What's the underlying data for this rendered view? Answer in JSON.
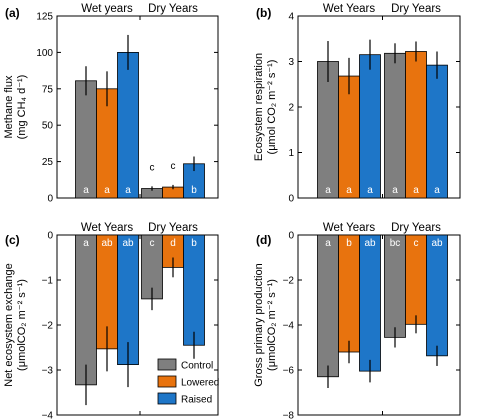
{
  "colors": {
    "Control": "#7f7f7f",
    "Lowered": "#e8730e",
    "Raised": "#1e76c8"
  },
  "legend": [
    "Control",
    "Lowered",
    "Raised"
  ],
  "chart_data": [
    {
      "panel": "(a)",
      "type": "bar",
      "ylabel": [
        "Methane flux",
        "(mg CH₄ d⁻¹)"
      ],
      "ylim": [
        0,
        125
      ],
      "yticks": [
        0,
        25,
        50,
        75,
        100,
        125
      ],
      "categories": [
        "Wet years",
        "Dry Years"
      ],
      "series": [
        {
          "name": "Control",
          "values": [
            80.5,
            6.5
          ],
          "err": [
            10,
            1.5
          ],
          "labels": [
            "a",
            "c"
          ]
        },
        {
          "name": "Lowered",
          "values": [
            75,
            7.5
          ],
          "err": [
            12,
            1.5
          ],
          "labels": [
            "a",
            "c"
          ]
        },
        {
          "name": "Raised",
          "values": [
            100,
            23.5
          ],
          "err": [
            12,
            5
          ],
          "labels": [
            "a",
            "b"
          ]
        }
      ]
    },
    {
      "panel": "(b)",
      "type": "bar",
      "ylabel": [
        "Ecosystem respiration",
        "(μmol CO₂ m⁻² s⁻¹)"
      ],
      "ylim": [
        0,
        4
      ],
      "yticks": [
        0,
        1,
        2,
        3,
        4
      ],
      "categories": [
        "Wet Years",
        "Dry Years"
      ],
      "series": [
        {
          "name": "Control",
          "values": [
            3.0,
            3.18
          ],
          "err": [
            0.45,
            0.22
          ],
          "labels": [
            "a",
            "a"
          ]
        },
        {
          "name": "Lowered",
          "values": [
            2.68,
            3.22
          ],
          "err": [
            0.4,
            0.22
          ],
          "labels": [
            "a",
            "a"
          ]
        },
        {
          "name": "Raised",
          "values": [
            3.15,
            2.92
          ],
          "err": [
            0.33,
            0.3
          ],
          "labels": [
            "a",
            "a"
          ]
        }
      ]
    },
    {
      "panel": "(c)",
      "type": "bar",
      "ylabel": [
        "Net ecosystem exchange",
        "(μmolCO₂ m⁻² s⁻¹)"
      ],
      "ylim": [
        -4,
        0
      ],
      "yticks": [
        -4,
        -3,
        -2,
        -1,
        0
      ],
      "categories": [
        "Wet Years",
        "Dry Years"
      ],
      "series": [
        {
          "name": "Control",
          "values": [
            -3.33,
            -1.42
          ],
          "err": [
            0.45,
            0.25
          ],
          "labels": [
            "a",
            "c"
          ]
        },
        {
          "name": "Lowered",
          "values": [
            -2.53,
            -0.72
          ],
          "err": [
            0.5,
            0.22
          ],
          "labels": [
            "ab",
            "d"
          ]
        },
        {
          "name": "Raised",
          "values": [
            -2.88,
            -2.45
          ],
          "err": [
            0.5,
            0.3
          ],
          "labels": [
            "ab",
            "b"
          ]
        }
      ]
    },
    {
      "panel": "(d)",
      "type": "bar",
      "ylabel": [
        "Gross primary production",
        "(μmolCO₂ m⁻² s⁻¹)"
      ],
      "ylim": [
        -8,
        0
      ],
      "yticks": [
        -8,
        -6,
        -4,
        -2,
        0
      ],
      "categories": [
        "Wet Years",
        "Dry Years"
      ],
      "series": [
        {
          "name": "Control",
          "values": [
            -6.3,
            -4.55
          ],
          "err": [
            0.5,
            0.45
          ],
          "labels": [
            "a",
            "bc"
          ]
        },
        {
          "name": "Lowered",
          "values": [
            -5.2,
            -3.97
          ],
          "err": [
            0.5,
            0.4
          ],
          "labels": [
            "b",
            "c"
          ]
        },
        {
          "name": "Raised",
          "values": [
            -6.05,
            -5.37
          ],
          "err": [
            0.5,
            0.45
          ],
          "labels": [
            "ab",
            "ab"
          ]
        }
      ]
    }
  ]
}
